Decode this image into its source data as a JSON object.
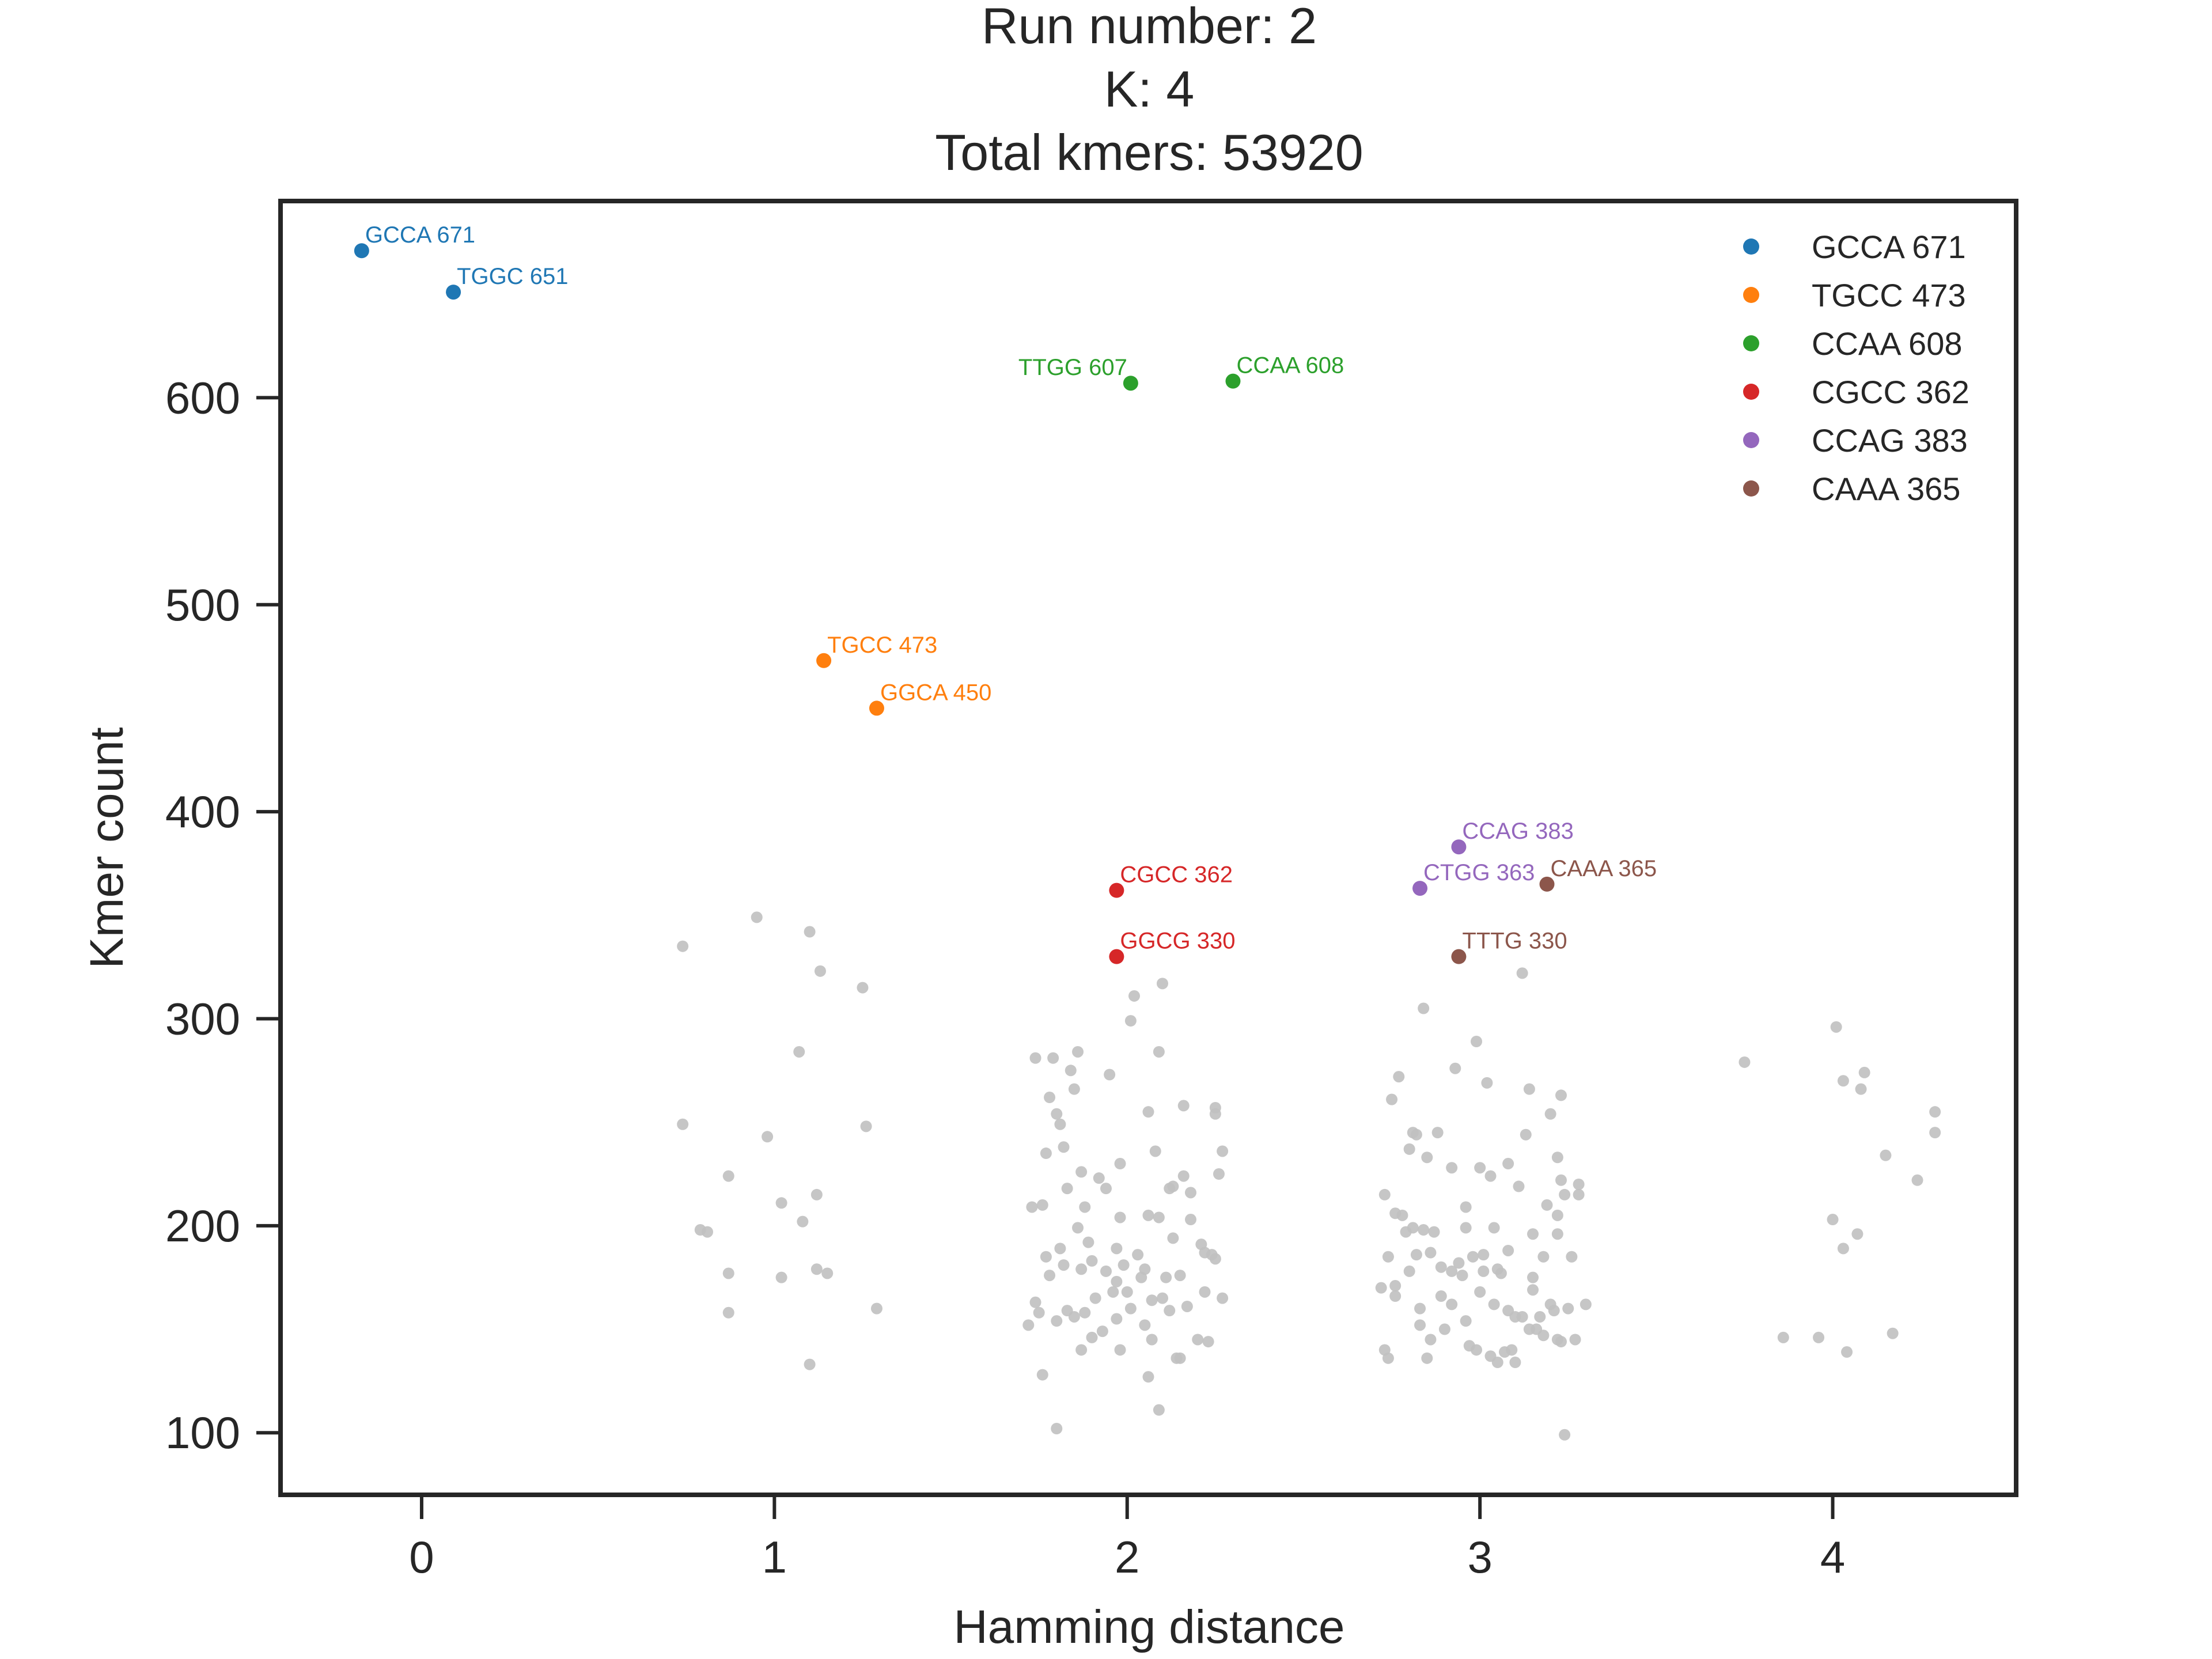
{
  "chart_data": {
    "type": "scatter",
    "title": [
      "Run number: 2",
      "K: 4",
      "Total kmers: 53920"
    ],
    "xlabel": "Hamming distance",
    "ylabel": "Kmer count",
    "xlim": [
      -0.4,
      4.52
    ],
    "ylim": [
      70,
      695
    ],
    "xticks": [
      0,
      1,
      2,
      3,
      4
    ],
    "yticks": [
      100,
      200,
      300,
      400,
      500,
      600
    ],
    "grid": false,
    "legend_position": "top-right",
    "legend": [
      {
        "label": "GCCA 671",
        "color": "#1f77b4"
      },
      {
        "label": "TGCC 473",
        "color": "#ff7f0e"
      },
      {
        "label": "CCAA 608",
        "color": "#2ca02c"
      },
      {
        "label": "CGCC 362",
        "color": "#d62728"
      },
      {
        "label": "CCAG 383",
        "color": "#9467bd"
      },
      {
        "label": "CAAA 365",
        "color": "#8c564b"
      }
    ],
    "highlighted": [
      {
        "label": "GCCA 671",
        "x": -0.17,
        "y": 671,
        "color": "#1f77b4",
        "anchor": "start"
      },
      {
        "label": "TGGC 651",
        "x": 0.09,
        "y": 651,
        "color": "#1f77b4",
        "anchor": "start"
      },
      {
        "label": "TTGG 607",
        "x": 2.01,
        "y": 607,
        "color": "#2ca02c",
        "anchor": "end"
      },
      {
        "label": "CCAA 608",
        "x": 2.3,
        "y": 608,
        "color": "#2ca02c",
        "anchor": "start"
      },
      {
        "label": "TGCC 473",
        "x": 1.14,
        "y": 473,
        "color": "#ff7f0e",
        "anchor": "start"
      },
      {
        "label": "GGCA 450",
        "x": 1.29,
        "y": 450,
        "color": "#ff7f0e",
        "anchor": "start"
      },
      {
        "label": "CGCC 362",
        "x": 1.97,
        "y": 362,
        "color": "#d62728",
        "anchor": "start"
      },
      {
        "label": "GGCG 330",
        "x": 1.97,
        "y": 330,
        "color": "#d62728",
        "anchor": "start"
      },
      {
        "label": "CCAG 383",
        "x": 2.94,
        "y": 383,
        "color": "#9467bd",
        "anchor": "start"
      },
      {
        "label": "CTGG 363",
        "x": 2.83,
        "y": 363,
        "color": "#9467bd",
        "anchor": "start"
      },
      {
        "label": "CAAA 365",
        "x": 3.19,
        "y": 365,
        "color": "#8c564b",
        "anchor": "start"
      },
      {
        "label": "TTTG 330",
        "x": 2.94,
        "y": 330,
        "color": "#8c564b",
        "anchor": "start"
      }
    ],
    "background_points": {
      "color": "#c0c0c0",
      "points": [
        [
          0.74,
          335
        ],
        [
          0.74,
          249
        ],
        [
          0.79,
          198
        ],
        [
          0.81,
          197
        ],
        [
          0.87,
          224
        ],
        [
          0.87,
          177
        ],
        [
          0.87,
          158
        ],
        [
          0.95,
          349
        ],
        [
          0.98,
          243
        ],
        [
          1.02,
          211
        ],
        [
          1.02,
          175
        ],
        [
          1.07,
          284
        ],
        [
          1.08,
          202
        ],
        [
          1.1,
          342
        ],
        [
          1.1,
          133
        ],
        [
          1.12,
          179
        ],
        [
          1.12,
          215
        ],
        [
          1.13,
          323
        ],
        [
          1.15,
          177
        ],
        [
          1.25,
          315
        ],
        [
          1.26,
          248
        ],
        [
          1.29,
          160
        ],
        [
          1.72,
          152
        ],
        [
          1.73,
          209
        ],
        [
          1.74,
          281
        ],
        [
          1.74,
          163
        ],
        [
          1.75,
          158
        ],
        [
          1.76,
          210
        ],
        [
          1.76,
          128
        ],
        [
          1.77,
          185
        ],
        [
          1.77,
          235
        ],
        [
          1.78,
          262
        ],
        [
          1.78,
          176
        ],
        [
          1.79,
          281
        ],
        [
          1.8,
          154
        ],
        [
          1.8,
          102
        ],
        [
          1.8,
          254
        ],
        [
          1.81,
          189
        ],
        [
          1.81,
          249
        ],
        [
          1.82,
          238
        ],
        [
          1.82,
          181
        ],
        [
          1.83,
          218
        ],
        [
          1.83,
          159
        ],
        [
          1.84,
          275
        ],
        [
          1.85,
          156
        ],
        [
          1.85,
          266
        ],
        [
          1.86,
          199
        ],
        [
          1.86,
          284
        ],
        [
          1.87,
          179
        ],
        [
          1.87,
          140
        ],
        [
          1.87,
          226
        ],
        [
          1.88,
          158
        ],
        [
          1.88,
          209
        ],
        [
          1.89,
          192
        ],
        [
          1.9,
          183
        ],
        [
          1.9,
          146
        ],
        [
          1.91,
          165
        ],
        [
          1.92,
          223
        ],
        [
          1.93,
          149
        ],
        [
          1.94,
          218
        ],
        [
          1.94,
          178
        ],
        [
          1.95,
          273
        ],
        [
          1.96,
          168
        ],
        [
          1.97,
          189
        ],
        [
          1.97,
          155
        ],
        [
          1.97,
          173
        ],
        [
          1.98,
          204
        ],
        [
          1.98,
          140
        ],
        [
          1.98,
          230
        ],
        [
          1.99,
          181
        ],
        [
          2.0,
          168
        ],
        [
          2.01,
          299
        ],
        [
          2.01,
          160
        ],
        [
          2.02,
          311
        ],
        [
          2.03,
          186
        ],
        [
          2.04,
          175
        ],
        [
          2.05,
          152
        ],
        [
          2.05,
          179
        ],
        [
          2.06,
          127
        ],
        [
          2.06,
          255
        ],
        [
          2.06,
          205
        ],
        [
          2.07,
          164
        ],
        [
          2.07,
          145
        ],
        [
          2.08,
          236
        ],
        [
          2.09,
          284
        ],
        [
          2.09,
          111
        ],
        [
          2.09,
          204
        ],
        [
          2.1,
          165
        ],
        [
          2.1,
          317
        ],
        [
          2.11,
          175
        ],
        [
          2.12,
          218
        ],
        [
          2.12,
          159
        ],
        [
          2.13,
          219
        ],
        [
          2.13,
          194
        ],
        [
          2.14,
          136
        ],
        [
          2.15,
          176
        ],
        [
          2.15,
          136
        ],
        [
          2.16,
          258
        ],
        [
          2.16,
          224
        ],
        [
          2.17,
          161
        ],
        [
          2.18,
          216
        ],
        [
          2.18,
          203
        ],
        [
          2.2,
          145
        ],
        [
          2.21,
          191
        ],
        [
          2.22,
          187
        ],
        [
          2.22,
          168
        ],
        [
          2.23,
          144
        ],
        [
          2.24,
          186
        ],
        [
          2.25,
          254
        ],
        [
          2.25,
          257
        ],
        [
          2.25,
          184
        ],
        [
          2.26,
          225
        ],
        [
          2.27,
          165
        ],
        [
          2.27,
          236
        ],
        [
          2.72,
          170
        ],
        [
          2.73,
          215
        ],
        [
          2.73,
          140
        ],
        [
          2.74,
          185
        ],
        [
          2.74,
          136
        ],
        [
          2.75,
          261
        ],
        [
          2.76,
          206
        ],
        [
          2.76,
          171
        ],
        [
          2.76,
          166
        ],
        [
          2.77,
          272
        ],
        [
          2.78,
          205
        ],
        [
          2.79,
          197
        ],
        [
          2.8,
          178
        ],
        [
          2.8,
          237
        ],
        [
          2.81,
          245
        ],
        [
          2.81,
          199
        ],
        [
          2.82,
          244
        ],
        [
          2.82,
          186
        ],
        [
          2.83,
          160
        ],
        [
          2.83,
          152
        ],
        [
          2.84,
          305
        ],
        [
          2.84,
          198
        ],
        [
          2.85,
          233
        ],
        [
          2.85,
          136
        ],
        [
          2.86,
          187
        ],
        [
          2.86,
          145
        ],
        [
          2.87,
          197
        ],
        [
          2.88,
          245
        ],
        [
          2.89,
          180
        ],
        [
          2.89,
          166
        ],
        [
          2.9,
          150
        ],
        [
          2.92,
          162
        ],
        [
          2.92,
          178
        ],
        [
          2.92,
          228
        ],
        [
          2.93,
          276
        ],
        [
          2.94,
          182
        ],
        [
          2.95,
          176
        ],
        [
          2.96,
          199
        ],
        [
          2.96,
          209
        ],
        [
          2.96,
          154
        ],
        [
          2.97,
          142
        ],
        [
          2.98,
          185
        ],
        [
          2.99,
          289
        ],
        [
          2.99,
          140
        ],
        [
          3.0,
          168
        ],
        [
          3.0,
          228
        ],
        [
          3.01,
          186
        ],
        [
          3.01,
          178
        ],
        [
          3.02,
          269
        ],
        [
          3.03,
          224
        ],
        [
          3.03,
          137
        ],
        [
          3.04,
          199
        ],
        [
          3.04,
          162
        ],
        [
          3.05,
          179
        ],
        [
          3.05,
          134
        ],
        [
          3.06,
          177
        ],
        [
          3.07,
          139
        ],
        [
          3.08,
          230
        ],
        [
          3.08,
          188
        ],
        [
          3.08,
          159
        ],
        [
          3.09,
          140
        ],
        [
          3.1,
          156
        ],
        [
          3.1,
          134
        ],
        [
          3.11,
          219
        ],
        [
          3.12,
          156
        ],
        [
          3.12,
          322
        ],
        [
          3.13,
          244
        ],
        [
          3.14,
          266
        ],
        [
          3.14,
          150
        ],
        [
          3.15,
          169
        ],
        [
          3.15,
          196
        ],
        [
          3.15,
          175
        ],
        [
          3.16,
          150
        ],
        [
          3.17,
          156
        ],
        [
          3.18,
          185
        ],
        [
          3.18,
          147
        ],
        [
          3.19,
          210
        ],
        [
          3.2,
          162
        ],
        [
          3.2,
          254
        ],
        [
          3.21,
          159
        ],
        [
          3.22,
          233
        ],
        [
          3.22,
          205
        ],
        [
          3.22,
          196
        ],
        [
          3.22,
          145
        ],
        [
          3.23,
          263
        ],
        [
          3.23,
          222
        ],
        [
          3.23,
          144
        ],
        [
          3.24,
          215
        ],
        [
          3.24,
          99
        ],
        [
          3.25,
          160
        ],
        [
          3.26,
          185
        ],
        [
          3.27,
          145
        ],
        [
          3.28,
          215
        ],
        [
          3.28,
          220
        ],
        [
          3.3,
          162
        ],
        [
          3.75,
          279
        ],
        [
          3.86,
          146
        ],
        [
          3.96,
          146
        ],
        [
          4.0,
          203
        ],
        [
          4.01,
          296
        ],
        [
          4.03,
          189
        ],
        [
          4.03,
          270
        ],
        [
          4.04,
          139
        ],
        [
          4.07,
          196
        ],
        [
          4.08,
          266
        ],
        [
          4.09,
          274
        ],
        [
          4.15,
          234
        ],
        [
          4.17,
          148
        ],
        [
          4.24,
          222
        ],
        [
          4.29,
          255
        ],
        [
          4.29,
          245
        ]
      ]
    }
  }
}
